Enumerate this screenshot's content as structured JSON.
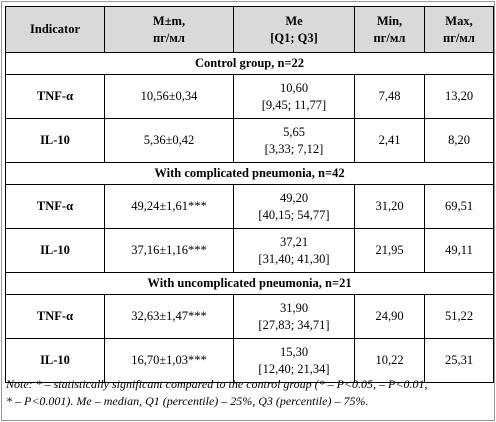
{
  "headers": [
    "Indicator",
    "M±m,",
    "пг/мл",
    "Me",
    "[Q1; Q3]",
    "Min,",
    "пг/мл",
    "Max,",
    "пг/мл"
  ],
  "groups": [
    {
      "title": "Control group, n=22",
      "rows": [
        {
          "indicator": "TNF-α",
          "mean": "10,56±0,34",
          "me": "10,60",
          "q": "[9,45; 11,77]",
          "min": "7,48",
          "max": "13,20"
        },
        {
          "indicator": "IL-10",
          "mean": "5,36±0,42",
          "me": "5,65",
          "q": "[3,33; 7,12]",
          "min": "2,41",
          "max": "8,20"
        }
      ]
    },
    {
      "title": "With complicated pneumonia, n=42",
      "rows": [
        {
          "indicator": "TNF-α",
          "mean": "49,24±1,61***",
          "me": "49,20",
          "q": "[40,15; 54,77]",
          "min": "31,20",
          "max": "69,51"
        },
        {
          "indicator": "IL-10",
          "mean": "37,16±1,16***",
          "me": "37,21",
          "q": "[31,40; 41,30]",
          "min": "21,95",
          "max": "49,11"
        }
      ]
    },
    {
      "title": "With uncomplicated pneumonia, n=21",
      "rows": [
        {
          "indicator": "TNF-α",
          "mean": "32,63±1,47***",
          "me": "31,90",
          "q": "[27,83; 34,71]",
          "min": "24,90",
          "max": "51,22"
        },
        {
          "indicator": "IL-10",
          "mean": "16,70±1,03***",
          "me": "15,30",
          "q": "[12,40; 21,34]",
          "min": "10,22",
          "max": "25,31"
        }
      ]
    }
  ],
  "note": {
    "line1": "Note: * – statistically significant compared to the control group (* – P<0.05, – P<0.01,",
    "line2": "* – P<0.001). Me – median, Q1 (percentile) – 25%, Q3 (percentile) – 75%."
  }
}
